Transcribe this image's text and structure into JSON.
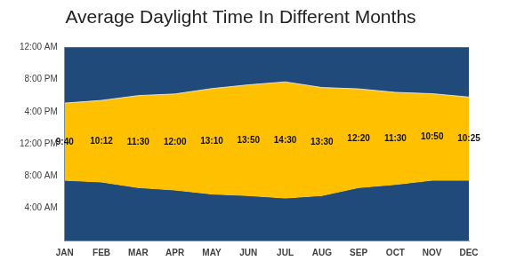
{
  "chart_data": {
    "type": "area",
    "title": "Average Daylight Time In Different Months",
    "categories": [
      "JAN",
      "FEB",
      "MAR",
      "APR",
      "MAY",
      "JUN",
      "JUL",
      "AUG",
      "SEP",
      "OCT",
      "NOV",
      "DEC"
    ],
    "series": [
      {
        "color": "#1f4a7a",
        "values": [
          7.4,
          7.2,
          6.5,
          6.2,
          5.7,
          5.5,
          5.2,
          5.5,
          6.5,
          6.9,
          7.4,
          7.4
        ]
      },
      {
        "color": "#ffc000",
        "values": [
          9.667,
          10.2,
          11.5,
          12,
          13.167,
          13.833,
          14.5,
          13.5,
          12.333,
          11.5,
          10.833,
          10.417
        ],
        "value_labels": [
          "9:40",
          "10:12",
          "11:30",
          "12:00",
          "13:10",
          "13:50",
          "14:30",
          "13:30",
          "12:20",
          "11:30",
          "10:50",
          "10:25"
        ],
        "data_labels": true
      }
    ],
    "stacked": true,
    "ylim": [
      0,
      24
    ],
    "yticks": [
      {
        "value": 4,
        "label": "4:00 AM"
      },
      {
        "value": 8,
        "label": "8:00 AM"
      },
      {
        "value": 12,
        "label": "12:00 PM"
      },
      {
        "value": 16,
        "label": "4:00 PM"
      },
      {
        "value": 20,
        "label": "8:00 PM"
      },
      {
        "value": 24,
        "label": "12:00 AM"
      }
    ],
    "grid": false
  }
}
